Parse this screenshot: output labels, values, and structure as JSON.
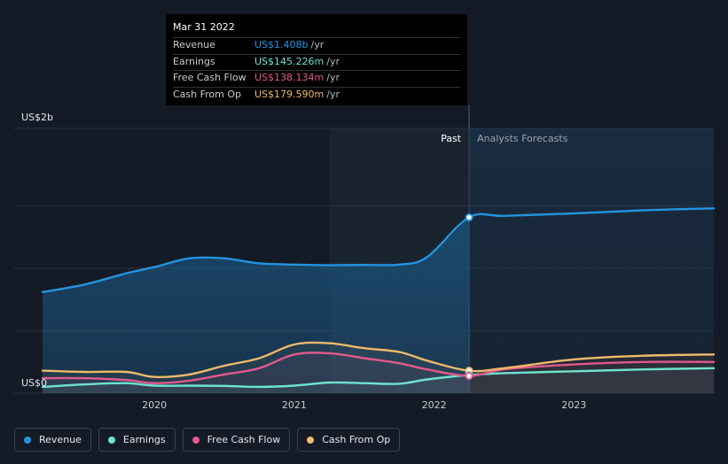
{
  "tooltip": {
    "date": "Mar 31 2022",
    "rows": [
      {
        "label": "Revenue",
        "value": "US$1.408b",
        "unit": "/yr",
        "color": "#2394df"
      },
      {
        "label": "Earnings",
        "value": "US$145.226m",
        "unit": "/yr",
        "color": "#6fe3cf"
      },
      {
        "label": "Free Cash Flow",
        "value": "US$138.134m",
        "unit": "/yr",
        "color": "#e05a8e"
      },
      {
        "label": "Cash From Op",
        "value": "US$179.590m",
        "unit": "/yr",
        "color": "#f0b96b"
      }
    ]
  },
  "legend": [
    {
      "label": "Revenue",
      "color": "#2394df"
    },
    {
      "label": "Earnings",
      "color": "#6fe3cf"
    },
    {
      "label": "Free Cash Flow",
      "color": "#e05a8e"
    },
    {
      "label": "Cash From Op",
      "color": "#f0b96b"
    }
  ],
  "chart_data": {
    "type": "line",
    "title": "",
    "xlabel": "",
    "ylabel": "",
    "unit": "US$",
    "y_range_billions": [
      0,
      2
    ],
    "y_tick_labels": [
      "US$0",
      "US$2b"
    ],
    "x_range_years": [
      2019.2,
      2024.0
    ],
    "x_ticks": [
      {
        "year": 2020.0,
        "label": "2020"
      },
      {
        "year": 2021.0,
        "label": "2021"
      },
      {
        "year": 2022.0,
        "label": "2022"
      },
      {
        "year": 2023.0,
        "label": "2023"
      }
    ],
    "divider_year": 2022.25,
    "highlight_start_year": 2021.25,
    "past_label": "Past",
    "forecast_label": "Analysts Forecasts",
    "grid": true,
    "series": [
      {
        "name": "Revenue",
        "color": "#2394df",
        "fill": true,
        "x": [
          2019.2,
          2019.5,
          2019.8,
          2020.0,
          2020.25,
          2020.5,
          2020.75,
          2021.0,
          2021.25,
          2021.5,
          2021.75,
          2021.95,
          2022.25,
          2022.5,
          2023.0,
          2023.5,
          2024.0
        ],
        "values": [
          0.81,
          0.87,
          0.96,
          1.01,
          1.08,
          1.08,
          1.04,
          1.03,
          1.025,
          1.027,
          1.03,
          1.09,
          1.408,
          1.42,
          1.44,
          1.465,
          1.48
        ]
      },
      {
        "name": "Earnings",
        "color": "#6fe3cf",
        "fill": false,
        "x": [
          2019.2,
          2019.5,
          2019.8,
          2020.0,
          2020.25,
          2020.5,
          2020.75,
          2021.0,
          2021.25,
          2021.5,
          2021.75,
          2021.95,
          2022.25,
          2022.5,
          2023.0,
          2023.5,
          2024.0
        ],
        "values": [
          0.05,
          0.07,
          0.08,
          0.06,
          0.06,
          0.058,
          0.05,
          0.06,
          0.085,
          0.08,
          0.075,
          0.11,
          0.145,
          0.16,
          0.175,
          0.19,
          0.2
        ]
      },
      {
        "name": "Free Cash Flow",
        "color": "#e05a8e",
        "fill": false,
        "x": [
          2019.2,
          2019.5,
          2019.8,
          2020.0,
          2020.25,
          2020.5,
          2020.75,
          2021.0,
          2021.25,
          2021.5,
          2021.75,
          2021.95,
          2022.25,
          2022.5,
          2023.0,
          2023.5,
          2024.0
        ],
        "values": [
          0.12,
          0.12,
          0.105,
          0.08,
          0.1,
          0.15,
          0.2,
          0.31,
          0.32,
          0.28,
          0.24,
          0.19,
          0.138,
          0.19,
          0.23,
          0.25,
          0.25
        ]
      },
      {
        "name": "Cash From Op",
        "color": "#f0b96b",
        "fill": false,
        "x": [
          2019.2,
          2019.5,
          2019.8,
          2020.0,
          2020.25,
          2020.5,
          2020.75,
          2021.0,
          2021.25,
          2021.5,
          2021.75,
          2021.95,
          2022.25,
          2022.5,
          2023.0,
          2023.5,
          2024.0
        ],
        "values": [
          0.18,
          0.17,
          0.17,
          0.13,
          0.15,
          0.22,
          0.28,
          0.39,
          0.4,
          0.36,
          0.33,
          0.26,
          0.1796,
          0.2,
          0.27,
          0.3,
          0.31
        ]
      }
    ],
    "markers": [
      {
        "series": "Revenue",
        "x": 2022.25,
        "value": 1.408
      },
      {
        "series": "Cash From Op",
        "x": 2022.25,
        "value": 0.1796
      },
      {
        "series": "Earnings",
        "x": 2022.25,
        "value": 0.145
      },
      {
        "series": "Free Cash Flow",
        "x": 2022.25,
        "value": 0.138
      }
    ]
  }
}
